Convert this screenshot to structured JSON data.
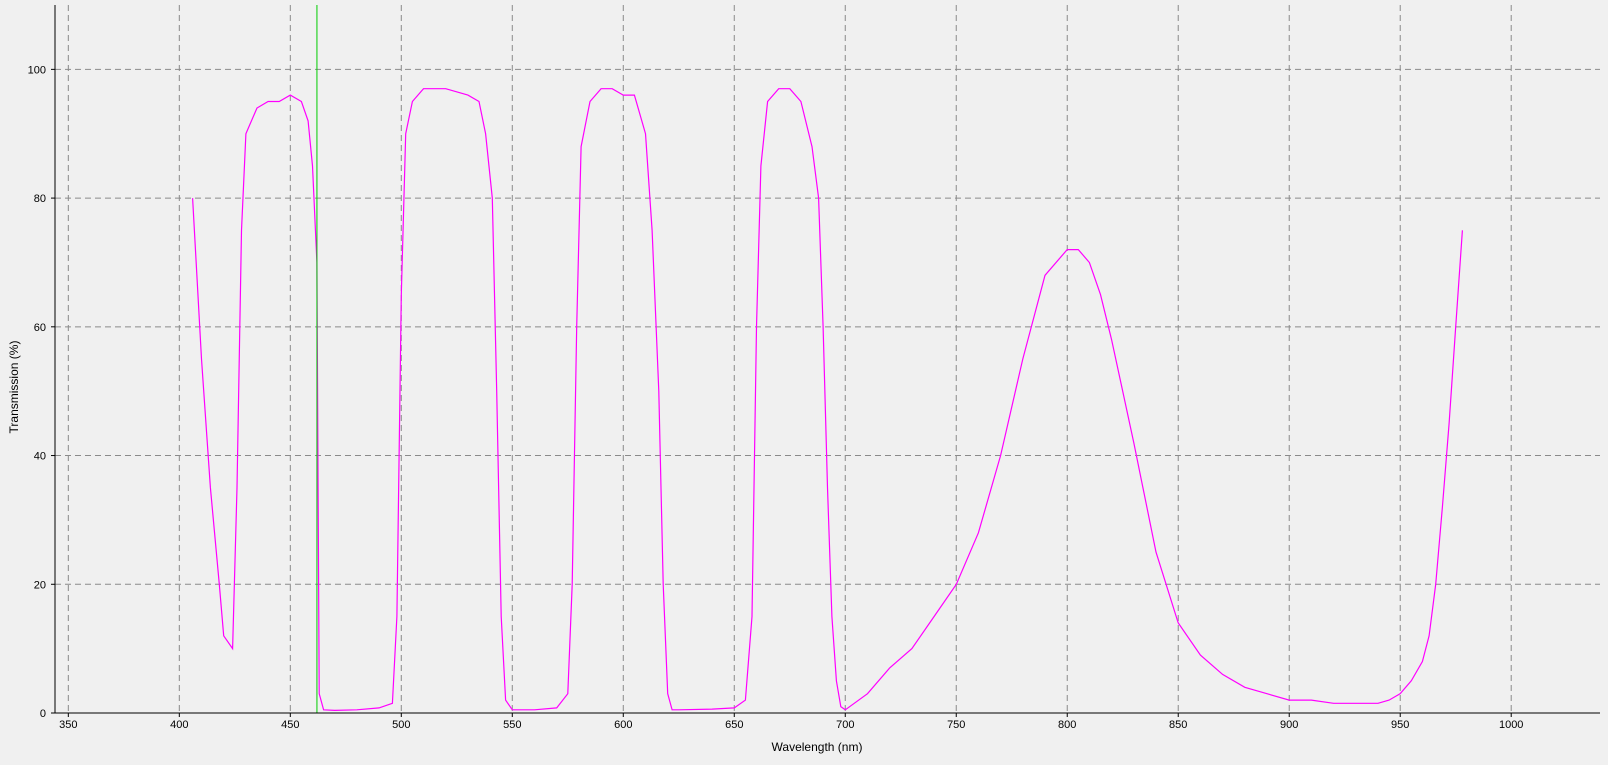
{
  "chart_data": {
    "type": "line",
    "title": "",
    "xlabel": "Wavelength (nm)",
    "ylabel": "Transmission (%)",
    "xlim": [
      344,
      1040
    ],
    "ylim": [
      0,
      110
    ],
    "x_ticks": [
      350,
      400,
      450,
      500,
      550,
      600,
      650,
      700,
      750,
      800,
      850,
      900,
      950,
      1000
    ],
    "y_ticks": [
      0,
      20,
      40,
      60,
      80,
      100
    ],
    "grid": true,
    "colors": {
      "series": "#ff00ff",
      "marker": "#00cc00",
      "background": "#f0f0f0",
      "grid": "#8a8a8a"
    },
    "series": [
      {
        "x": [
          406,
          410,
          414,
          418,
          420,
          424,
          426,
          428,
          430,
          435,
          440,
          445,
          450,
          455,
          458,
          460,
          462,
          463,
          465,
          470,
          480,
          490,
          496,
          498,
          500,
          502,
          505,
          510,
          520,
          530,
          535,
          538,
          541,
          543,
          545,
          547,
          550,
          560,
          570,
          575,
          577,
          579,
          581,
          585,
          590,
          595,
          600,
          605,
          610,
          613,
          616,
          618,
          620,
          622,
          625,
          640,
          650,
          655,
          658,
          660,
          662,
          665,
          670,
          675,
          680,
          685,
          688,
          690,
          692,
          694,
          696,
          698,
          700,
          710,
          720,
          730,
          740,
          750,
          760,
          770,
          780,
          790,
          800,
          805,
          810,
          815,
          820,
          830,
          840,
          850,
          860,
          870,
          880,
          890,
          900,
          910,
          920,
          930,
          940,
          945,
          950,
          955,
          960,
          963,
          966,
          969,
          972,
          975,
          978
        ],
        "y": [
          80,
          55,
          35,
          20,
          12,
          10,
          35,
          75,
          90,
          94,
          95,
          95,
          96,
          95,
          92,
          85,
          70,
          3,
          0.5,
          0.4,
          0.5,
          0.8,
          1.5,
          15,
          65,
          90,
          95,
          97,
          97,
          96,
          95,
          90,
          80,
          50,
          15,
          2,
          0.5,
          0.5,
          0.8,
          3,
          20,
          60,
          88,
          95,
          97,
          97,
          96,
          96,
          90,
          75,
          50,
          20,
          3,
          0.5,
          0.5,
          0.6,
          0.8,
          2,
          15,
          60,
          85,
          95,
          97,
          97,
          95,
          88,
          80,
          60,
          35,
          15,
          5,
          1,
          0.5,
          3,
          7,
          10,
          15,
          20,
          28,
          40,
          55,
          68,
          72,
          72,
          70,
          65,
          58,
          42,
          25,
          14,
          9,
          6,
          4,
          3,
          2,
          2,
          1.5,
          1.5,
          1.5,
          2,
          3,
          5,
          8,
          12,
          20,
          32,
          45,
          60,
          75
        ]
      }
    ],
    "marker_line": {
      "x": 462
    }
  }
}
